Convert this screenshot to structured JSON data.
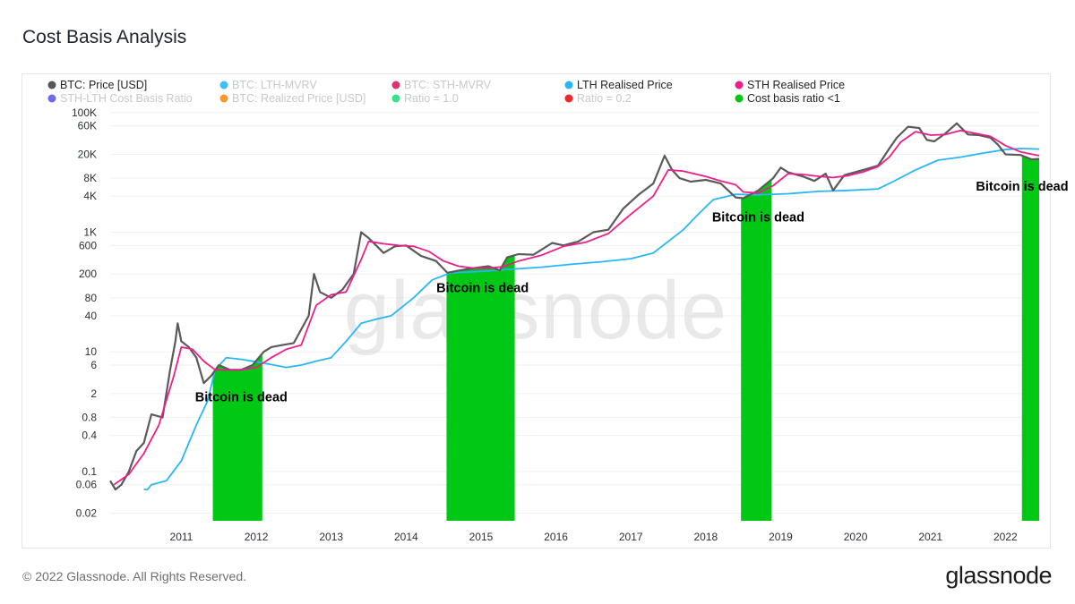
{
  "page": {
    "title": "Cost Basis Analysis",
    "footer": "© 2022 Glassnode. All Rights Reserved.",
    "brand": "glassnode",
    "watermark": "glassnode"
  },
  "chart_data": {
    "type": "line",
    "title": "Cost Basis Analysis",
    "yscale": "log",
    "ylim": [
      0.015,
      110000
    ],
    "xlim": [
      2010.55,
      2022.95
    ],
    "grid": true,
    "y_ticks": [
      "100K",
      "60K",
      "20K",
      "8K",
      "4K",
      "1K",
      "600",
      "200",
      "80",
      "40",
      "10",
      "6",
      "2",
      "0.8",
      "0.4",
      "0.1",
      "0.06",
      "0.02"
    ],
    "y_tick_values": [
      100000,
      60000,
      20000,
      8000,
      4000,
      1000,
      600,
      200,
      80,
      40,
      10,
      6,
      2,
      0.8,
      0.4,
      0.1,
      0.06,
      0.02
    ],
    "x_ticks": [
      "2011",
      "2012",
      "2013",
      "2014",
      "2015",
      "2016",
      "2017",
      "2018",
      "2019",
      "2020",
      "2021",
      "2022"
    ],
    "x_tick_values": [
      2011,
      2012,
      2013,
      2014,
      2015,
      2016,
      2017,
      2018,
      2019,
      2020,
      2021,
      2022
    ],
    "legend": [
      {
        "label": "BTC: Price [USD]",
        "color": "#555555",
        "active": true
      },
      {
        "label": "BTC: LTH-MVRV",
        "color": "#29b6f6",
        "active": false
      },
      {
        "label": "BTC: STH-MVRV",
        "color": "#d81b60",
        "active": false
      },
      {
        "label": "LTH Realised Price",
        "color": "#29b6f6",
        "active": true
      },
      {
        "label": "STH Realised Price",
        "color": "#ec1e8c",
        "active": true
      },
      {
        "label": "STH-LTH Cost Basis Ratio",
        "color": "#5c5ce6",
        "active": false
      },
      {
        "label": "BTC: Realized Price [USD]",
        "color": "#ff8c1a",
        "active": false
      },
      {
        "label": "Ratio = 1.0",
        "color": "#22e07a",
        "active": false
      },
      {
        "label": "Ratio = 0.2",
        "color": "#ee1111",
        "active": false
      },
      {
        "label": "Cost basis ratio <1",
        "color": "#00c814",
        "active": true
      }
    ],
    "series": [
      {
        "name": "BTC: Price [USD]",
        "color": "#5a5a5a",
        "points": [
          [
            2010.55,
            0.07
          ],
          [
            2010.62,
            0.05
          ],
          [
            2010.7,
            0.06
          ],
          [
            2010.8,
            0.1
          ],
          [
            2010.9,
            0.22
          ],
          [
            2011.0,
            0.3
          ],
          [
            2011.1,
            0.9
          ],
          [
            2011.25,
            0.8
          ],
          [
            2011.35,
            5
          ],
          [
            2011.42,
            15
          ],
          [
            2011.45,
            30
          ],
          [
            2011.5,
            15
          ],
          [
            2011.6,
            12
          ],
          [
            2011.7,
            8
          ],
          [
            2011.8,
            3
          ],
          [
            2011.9,
            4
          ],
          [
            2012.0,
            6
          ],
          [
            2012.15,
            5
          ],
          [
            2012.3,
            5
          ],
          [
            2012.45,
            6
          ],
          [
            2012.6,
            10
          ],
          [
            2012.7,
            12
          ],
          [
            2012.85,
            13
          ],
          [
            2013.0,
            14
          ],
          [
            2013.2,
            40
          ],
          [
            2013.27,
            200
          ],
          [
            2013.35,
            100
          ],
          [
            2013.5,
            80
          ],
          [
            2013.65,
            110
          ],
          [
            2013.8,
            200
          ],
          [
            2013.9,
            1000
          ],
          [
            2014.0,
            800
          ],
          [
            2014.1,
            600
          ],
          [
            2014.2,
            450
          ],
          [
            2014.35,
            580
          ],
          [
            2014.5,
            600
          ],
          [
            2014.7,
            400
          ],
          [
            2014.9,
            330
          ],
          [
            2015.05,
            210
          ],
          [
            2015.3,
            240
          ],
          [
            2015.6,
            270
          ],
          [
            2015.75,
            230
          ],
          [
            2015.85,
            380
          ],
          [
            2016.0,
            430
          ],
          [
            2016.2,
            420
          ],
          [
            2016.45,
            660
          ],
          [
            2016.6,
            600
          ],
          [
            2016.8,
            700
          ],
          [
            2017.0,
            1000
          ],
          [
            2017.2,
            1100
          ],
          [
            2017.4,
            2500
          ],
          [
            2017.6,
            4200
          ],
          [
            2017.8,
            6500
          ],
          [
            2017.95,
            19000
          ],
          [
            2018.05,
            11000
          ],
          [
            2018.15,
            8000
          ],
          [
            2018.3,
            7000
          ],
          [
            2018.5,
            7500
          ],
          [
            2018.7,
            6500
          ],
          [
            2018.9,
            3800
          ],
          [
            2019.0,
            3700
          ],
          [
            2019.2,
            5000
          ],
          [
            2019.4,
            8000
          ],
          [
            2019.5,
            12000
          ],
          [
            2019.6,
            10000
          ],
          [
            2019.8,
            8500
          ],
          [
            2019.95,
            7200
          ],
          [
            2020.1,
            9500
          ],
          [
            2020.2,
            5000
          ],
          [
            2020.35,
            9000
          ],
          [
            2020.6,
            11000
          ],
          [
            2020.8,
            13000
          ],
          [
            2020.95,
            25000
          ],
          [
            2021.05,
            38000
          ],
          [
            2021.2,
            58000
          ],
          [
            2021.35,
            55000
          ],
          [
            2021.45,
            35000
          ],
          [
            2021.55,
            33000
          ],
          [
            2021.7,
            45000
          ],
          [
            2021.85,
            66000
          ],
          [
            2022.0,
            43000
          ],
          [
            2022.15,
            42000
          ],
          [
            2022.3,
            38000
          ],
          [
            2022.4,
            29000
          ],
          [
            2022.5,
            20000
          ],
          [
            2022.7,
            19500
          ],
          [
            2022.85,
            16500
          ],
          [
            2022.95,
            16800
          ]
        ]
      },
      {
        "name": "STH Realised Price",
        "color": "#ec1e8c",
        "points": [
          [
            2010.6,
            0.06
          ],
          [
            2010.8,
            0.09
          ],
          [
            2011.0,
            0.2
          ],
          [
            2011.2,
            0.6
          ],
          [
            2011.4,
            4
          ],
          [
            2011.5,
            12
          ],
          [
            2011.65,
            11
          ],
          [
            2011.8,
            7
          ],
          [
            2011.95,
            5
          ],
          [
            2012.1,
            5
          ],
          [
            2012.3,
            5
          ],
          [
            2012.5,
            5.5
          ],
          [
            2012.7,
            8
          ],
          [
            2012.9,
            11
          ],
          [
            2013.1,
            13
          ],
          [
            2013.3,
            60
          ],
          [
            2013.5,
            90
          ],
          [
            2013.7,
            100
          ],
          [
            2013.9,
            350
          ],
          [
            2014.0,
            700
          ],
          [
            2014.2,
            640
          ],
          [
            2014.4,
            600
          ],
          [
            2014.6,
            580
          ],
          [
            2014.8,
            480
          ],
          [
            2015.0,
            330
          ],
          [
            2015.2,
            270
          ],
          [
            2015.4,
            250
          ],
          [
            2015.6,
            250
          ],
          [
            2015.8,
            265
          ],
          [
            2016.0,
            330
          ],
          [
            2016.3,
            410
          ],
          [
            2016.6,
            580
          ],
          [
            2016.9,
            680
          ],
          [
            2017.2,
            950
          ],
          [
            2017.5,
            2000
          ],
          [
            2017.8,
            4000
          ],
          [
            2018.0,
            11000
          ],
          [
            2018.2,
            10500
          ],
          [
            2018.5,
            8500
          ],
          [
            2018.7,
            7200
          ],
          [
            2018.9,
            6200
          ],
          [
            2019.0,
            4700
          ],
          [
            2019.2,
            4500
          ],
          [
            2019.4,
            6000
          ],
          [
            2019.6,
            9500
          ],
          [
            2019.8,
            9200
          ],
          [
            2020.0,
            8600
          ],
          [
            2020.2,
            8200
          ],
          [
            2020.4,
            8800
          ],
          [
            2020.6,
            10200
          ],
          [
            2020.8,
            12500
          ],
          [
            2020.95,
            18000
          ],
          [
            2021.1,
            32000
          ],
          [
            2021.3,
            48000
          ],
          [
            2021.5,
            42000
          ],
          [
            2021.7,
            43000
          ],
          [
            2021.9,
            50000
          ],
          [
            2022.1,
            45000
          ],
          [
            2022.3,
            40000
          ],
          [
            2022.5,
            28000
          ],
          [
            2022.7,
            22000
          ],
          [
            2022.95,
            19000
          ]
        ]
      },
      {
        "name": "LTH Realised Price",
        "color": "#29b6f6",
        "points": [
          [
            2011.0,
            0.05
          ],
          [
            2011.05,
            0.05
          ],
          [
            2011.1,
            0.06
          ],
          [
            2011.3,
            0.07
          ],
          [
            2011.5,
            0.15
          ],
          [
            2011.7,
            0.6
          ],
          [
            2011.85,
            1.5
          ],
          [
            2011.95,
            5
          ],
          [
            2012.1,
            8
          ],
          [
            2012.3,
            7.5
          ],
          [
            2012.6,
            6.5
          ],
          [
            2012.9,
            5.5
          ],
          [
            2013.1,
            6
          ],
          [
            2013.3,
            7
          ],
          [
            2013.5,
            8
          ],
          [
            2013.7,
            15
          ],
          [
            2013.9,
            30
          ],
          [
            2014.1,
            35
          ],
          [
            2014.3,
            40
          ],
          [
            2014.6,
            80
          ],
          [
            2014.85,
            160
          ],
          [
            2015.1,
            210
          ],
          [
            2015.5,
            220
          ],
          [
            2015.9,
            240
          ],
          [
            2016.3,
            260
          ],
          [
            2016.7,
            290
          ],
          [
            2017.1,
            320
          ],
          [
            2017.5,
            360
          ],
          [
            2017.8,
            450
          ],
          [
            2018.0,
            700
          ],
          [
            2018.2,
            1100
          ],
          [
            2018.4,
            2000
          ],
          [
            2018.6,
            3500
          ],
          [
            2018.9,
            4300
          ],
          [
            2019.2,
            4200
          ],
          [
            2019.6,
            4400
          ],
          [
            2020.0,
            4800
          ],
          [
            2020.4,
            5000
          ],
          [
            2020.8,
            5300
          ],
          [
            2021.0,
            7000
          ],
          [
            2021.3,
            11000
          ],
          [
            2021.6,
            16000
          ],
          [
            2021.9,
            18000
          ],
          [
            2022.2,
            21000
          ],
          [
            2022.5,
            24000
          ],
          [
            2022.7,
            25000
          ],
          [
            2022.95,
            24500
          ]
        ]
      }
    ],
    "highlight_bands": {
      "label": "Cost basis ratio <1",
      "color": "#00c814",
      "ranges": [
        [
          2011.92,
          2012.58
        ],
        [
          2015.04,
          2015.95
        ],
        [
          2018.97,
          2019.38
        ],
        [
          2022.72,
          2022.95
        ]
      ]
    },
    "annotations": [
      {
        "text": "Bitcoin is dead",
        "x": 2012.3,
        "y": 1.5
      },
      {
        "text": "Bitcoin is dead",
        "x": 2015.52,
        "y": 100
      },
      {
        "text": "Bitcoin is dead",
        "x": 2019.2,
        "y": 1500
      },
      {
        "text": "Bitcoin is dead",
        "x": 2022.78,
        "y": 5000
      }
    ]
  }
}
